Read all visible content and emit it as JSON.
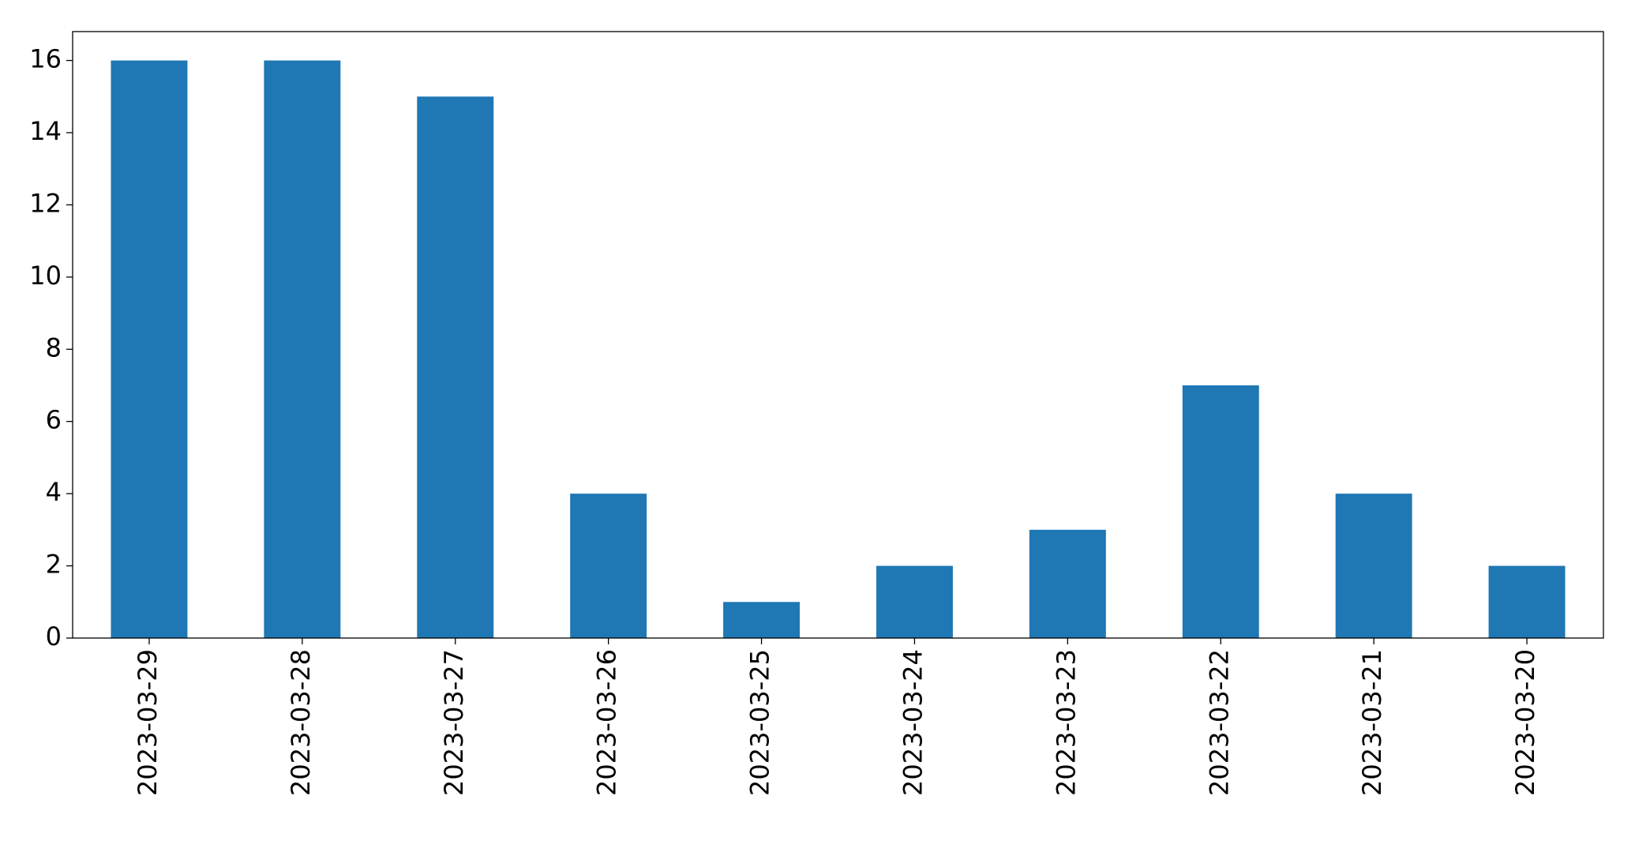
{
  "chart_data": {
    "type": "bar",
    "categories": [
      "2023-03-29",
      "2023-03-28",
      "2023-03-27",
      "2023-03-26",
      "2023-03-25",
      "2023-03-24",
      "2023-03-23",
      "2023-03-22",
      "2023-03-21",
      "2023-03-20"
    ],
    "values": [
      16,
      16,
      15,
      4,
      1,
      2,
      3,
      7,
      4,
      2
    ],
    "color": "#1f77b4",
    "ylim": [
      0,
      16.8
    ],
    "yticks": [
      0,
      2,
      4,
      6,
      8,
      10,
      12,
      14,
      16
    ],
    "grid": false
  }
}
